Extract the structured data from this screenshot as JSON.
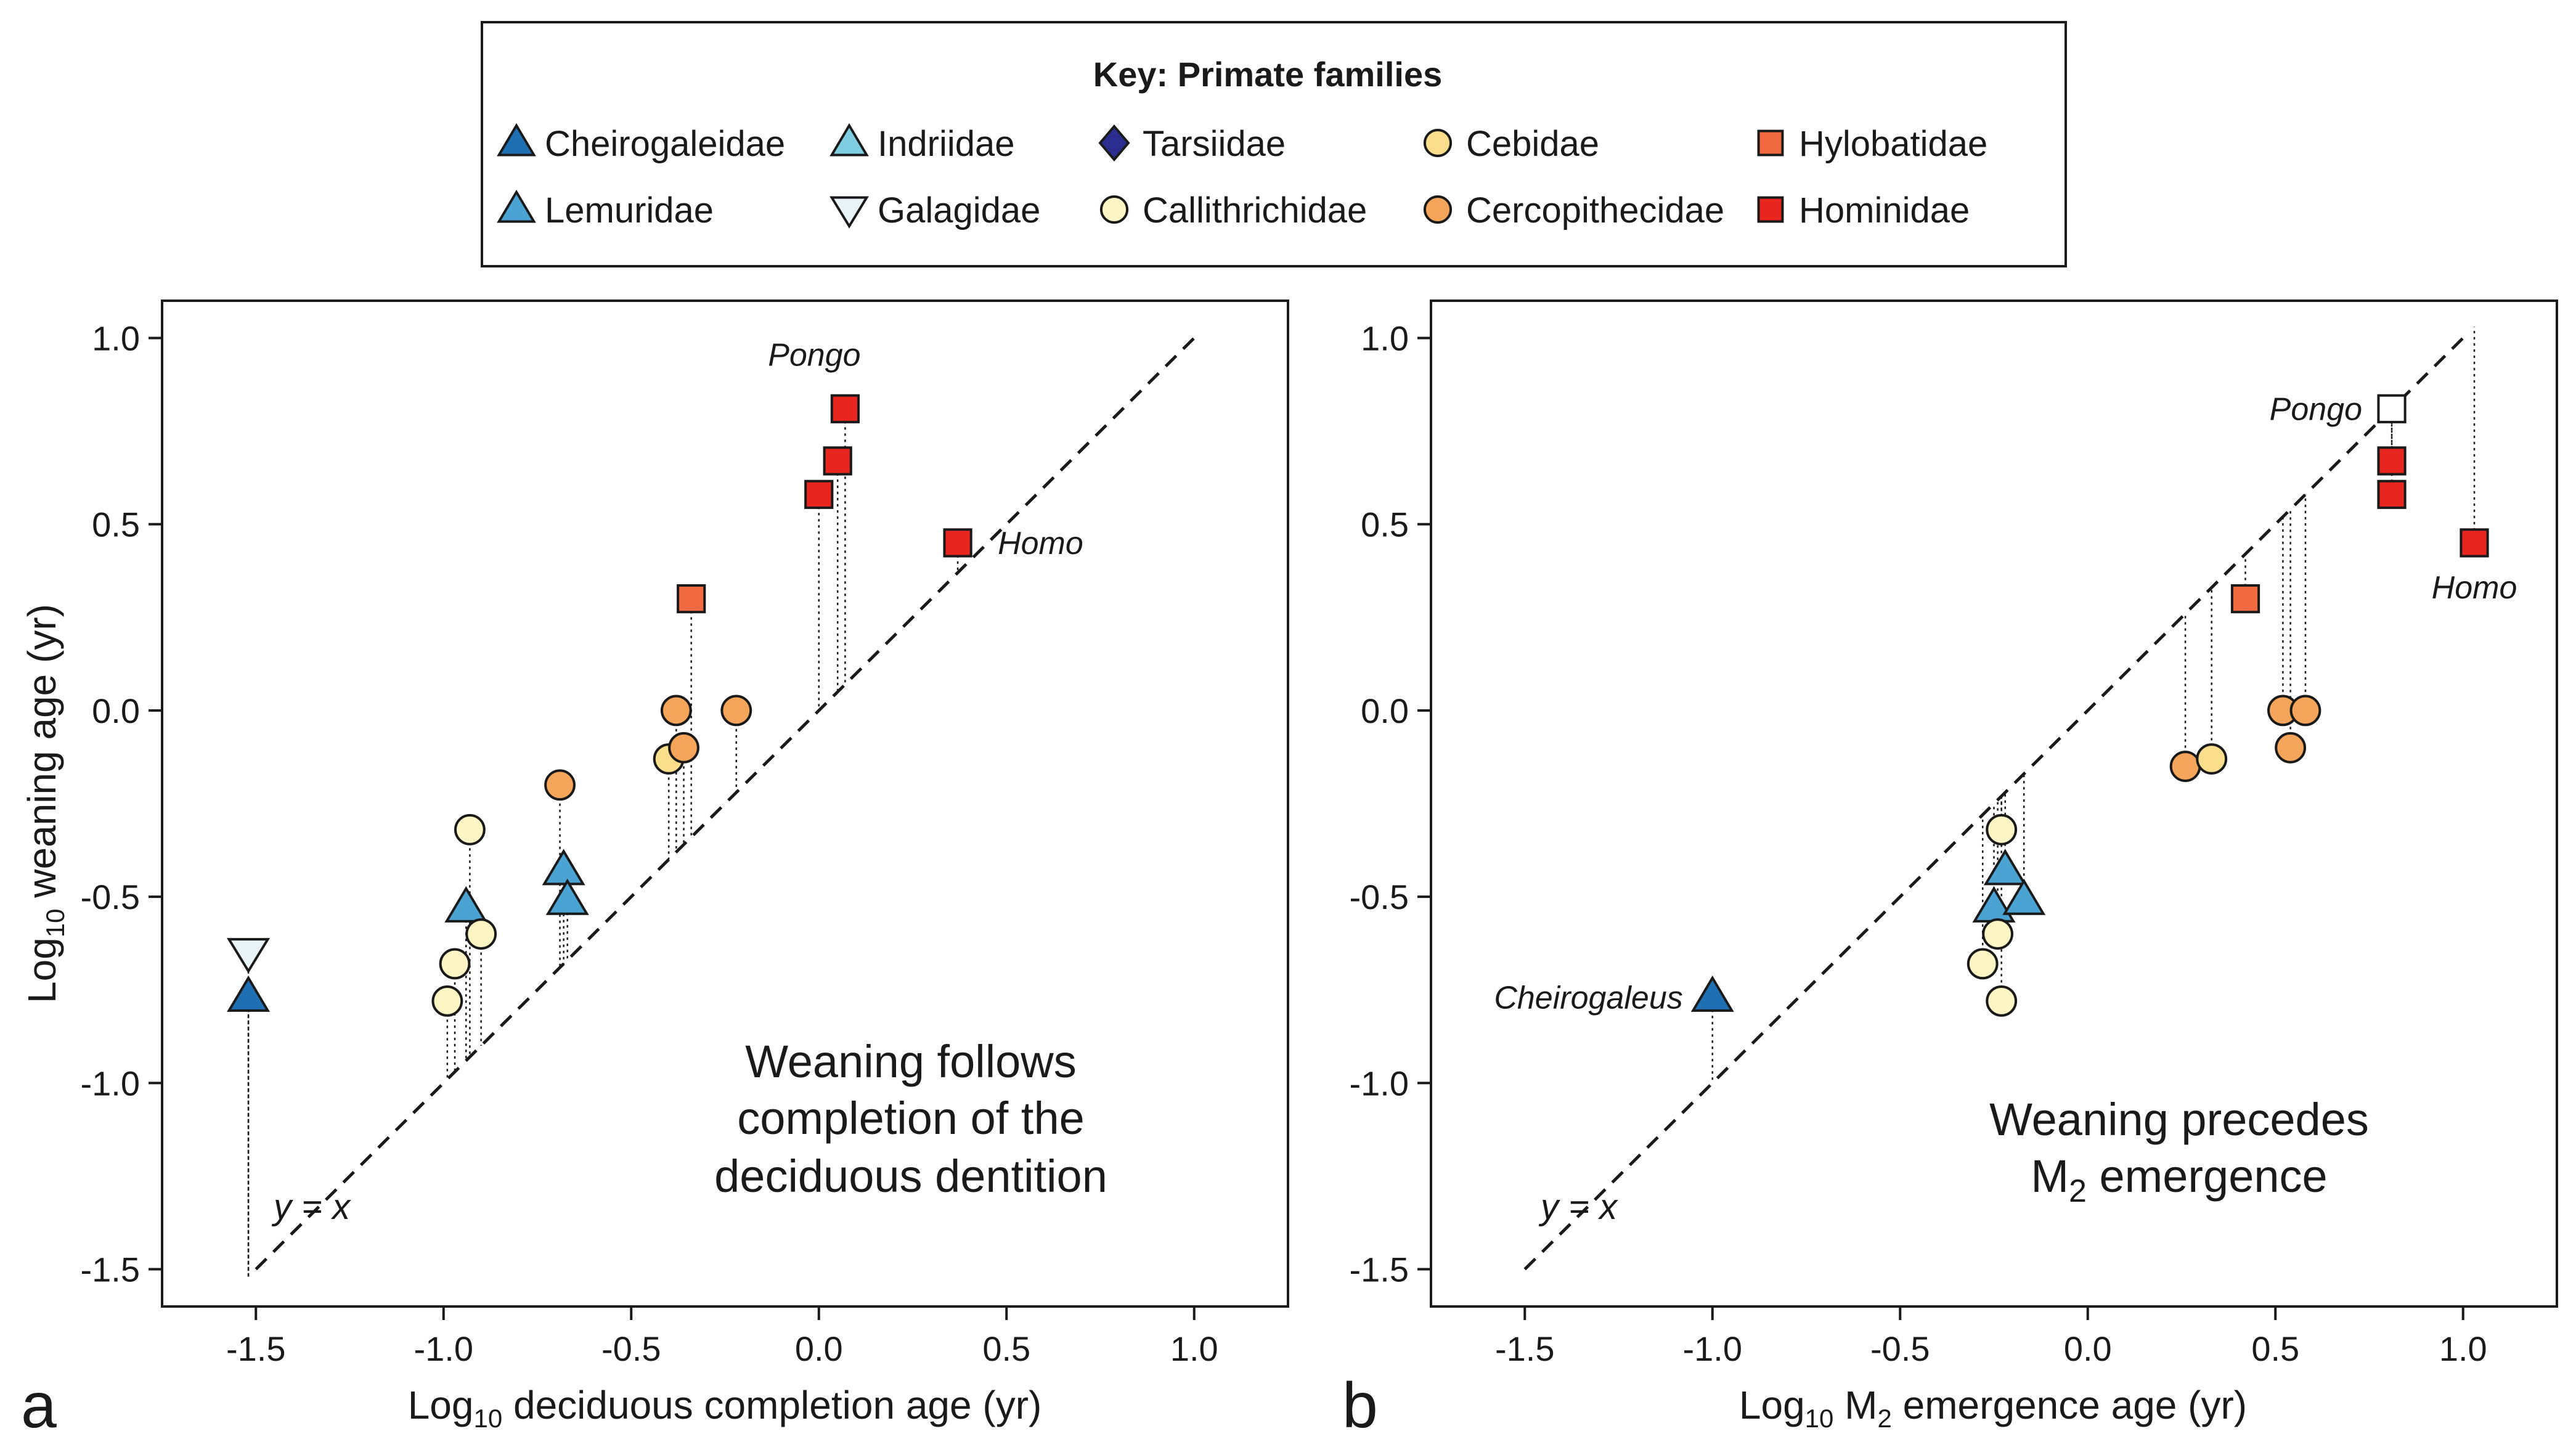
{
  "legend": {
    "title": "Key:  Primate families",
    "families": [
      {
        "name": "Cheirogaleidae",
        "marker": "triangle-up",
        "color": "#1f6fb3"
      },
      {
        "name": "Indriidae",
        "marker": "triangle-up",
        "color": "#7ecde0"
      },
      {
        "name": "Tarsiidae",
        "marker": "diamond",
        "color": "#2c2e8f"
      },
      {
        "name": "Cebidae",
        "marker": "circle",
        "color": "#fbde8c"
      },
      {
        "name": "Hylobatidae",
        "marker": "square",
        "color": "#f26a3f"
      },
      {
        "name": "Lemuridae",
        "marker": "triangle-up",
        "color": "#4aa3d3"
      },
      {
        "name": "Galagidae",
        "marker": "triangle-down",
        "color": "#e9f4f8"
      },
      {
        "name": "Callithrichidae",
        "marker": "circle",
        "color": "#fdf5c4"
      },
      {
        "name": "Cercopithecidae",
        "marker": "circle",
        "color": "#f5a55a"
      },
      {
        "name": "Hominidae",
        "marker": "square",
        "color": "#e8261f"
      }
    ]
  },
  "chart_data": [
    {
      "panel": "a",
      "type": "scatter",
      "xlabel_prefix": "Log",
      "xlabel_sub": "10",
      "xlabel_rest": " deciduous completion age (yr)",
      "ylabel_prefix": "Log",
      "ylabel_sub": "10",
      "ylabel_rest": " weaning age (yr)",
      "xlim": [
        -1.75,
        1.25
      ],
      "ylim": [
        -1.6,
        1.1
      ],
      "xticks": [
        -1.5,
        -1.0,
        -0.5,
        0.0,
        0.5,
        1.0
      ],
      "xtick_labels": [
        "-1.5",
        "-1.0",
        "-0.5",
        "0.0",
        "0.5",
        "1.0"
      ],
      "yticks": [
        -1.5,
        -1.0,
        -0.5,
        0.0,
        0.5,
        1.0
      ],
      "ytick_labels": [
        "-1.5",
        "-1.0",
        "-0.5",
        "0.0",
        "0.5",
        "1.0"
      ],
      "reference_line": {
        "label_prefix": "y",
        "label_rest": " = x",
        "slope": 1,
        "range": [
          -1.5,
          1.0
        ]
      },
      "annotation_lines": [
        "Weaning follows",
        "completion of the",
        "deciduous dentition"
      ],
      "points": [
        {
          "family": "Galagidae",
          "x": -1.52,
          "y": -0.65
        },
        {
          "family": "Cheirogaleidae",
          "x": -1.52,
          "y": -0.77
        },
        {
          "family": "Lemuridae",
          "x": -0.94,
          "y": -0.53
        },
        {
          "family": "Callithrichidae",
          "x": -0.93,
          "y": -0.32
        },
        {
          "family": "Callithrichidae",
          "x": -0.97,
          "y": -0.68
        },
        {
          "family": "Callithrichidae",
          "x": -0.99,
          "y": -0.78
        },
        {
          "family": "Callithrichidae",
          "x": -0.9,
          "y": -0.6
        },
        {
          "family": "Cercopithecidae",
          "x": -0.69,
          "y": -0.2
        },
        {
          "family": "Lemuridae",
          "x": -0.68,
          "y": -0.43
        },
        {
          "family": "Lemuridae",
          "x": -0.67,
          "y": -0.51
        },
        {
          "family": "Cebidae",
          "x": -0.4,
          "y": -0.13
        },
        {
          "family": "Cercopithecidae",
          "x": -0.38,
          "y": 0.0
        },
        {
          "family": "Cercopithecidae",
          "x": -0.36,
          "y": -0.1
        },
        {
          "family": "Hylobatidae",
          "x": -0.34,
          "y": 0.3
        },
        {
          "family": "Cercopithecidae",
          "x": -0.22,
          "y": 0.0
        },
        {
          "family": "Hominidae",
          "x": 0.0,
          "y": 0.58
        },
        {
          "family": "Hominidae",
          "x": 0.05,
          "y": 0.67
        },
        {
          "family": "Hominidae",
          "x": 0.07,
          "y": 0.81
        },
        {
          "family": "Hominidae",
          "x": 0.37,
          "y": 0.45
        }
      ],
      "point_labels": [
        {
          "text": "Pongo",
          "x": 0.07,
          "y": 0.81
        },
        {
          "text": "Homo",
          "x": 0.37,
          "y": 0.45
        }
      ]
    },
    {
      "panel": "b",
      "type": "scatter",
      "xlabel_prefix": "Log",
      "xlabel_sub": "10",
      "xlabel_mid": " M",
      "xlabel_sub2": "2",
      "xlabel_rest": " emergence age (yr)",
      "xlim": [
        -1.75,
        1.25
      ],
      "ylim": [
        -1.6,
        1.1
      ],
      "xticks": [
        -1.5,
        -1.0,
        -0.5,
        0.0,
        0.5,
        1.0
      ],
      "xtick_labels": [
        "-1.5",
        "-1.0",
        "-0.5",
        "0.0",
        "0.5",
        "1.0"
      ],
      "yticks": [
        -1.5,
        -1.0,
        -0.5,
        0.0,
        0.5,
        1.0
      ],
      "ytick_labels": [
        "-1.5",
        "-1.0",
        "-0.5",
        "0.0",
        "0.5",
        "1.0"
      ],
      "reference_line": {
        "label_prefix": "y",
        "label_rest": " = x",
        "slope": 1,
        "range": [
          -1.5,
          1.0
        ]
      },
      "annotation_line1": "Weaning precedes",
      "annotation_line2_prefix": "M",
      "annotation_line2_sub": "2",
      "annotation_line2_rest": " emergence",
      "points": [
        {
          "family": "Cheirogaleidae",
          "x": -1.0,
          "y": -0.77
        },
        {
          "family": "Callithrichidae",
          "x": -0.23,
          "y": -0.32
        },
        {
          "family": "Lemuridae",
          "x": -0.22,
          "y": -0.43
        },
        {
          "family": "Lemuridae",
          "x": -0.25,
          "y": -0.53
        },
        {
          "family": "Lemuridae",
          "x": -0.17,
          "y": -0.51
        },
        {
          "family": "Callithrichidae",
          "x": -0.24,
          "y": -0.6
        },
        {
          "family": "Callithrichidae",
          "x": -0.28,
          "y": -0.68
        },
        {
          "family": "Callithrichidae",
          "x": -0.23,
          "y": -0.78
        },
        {
          "family": "Cercopithecidae",
          "x": 0.26,
          "y": -0.15
        },
        {
          "family": "Cebidae",
          "x": 0.33,
          "y": -0.13
        },
        {
          "family": "Hylobatidae",
          "x": 0.42,
          "y": 0.3
        },
        {
          "family": "Cercopithecidae",
          "x": 0.52,
          "y": 0.0
        },
        {
          "family": "Cercopithecidae",
          "x": 0.58,
          "y": 0.0
        },
        {
          "family": "Cercopithecidae",
          "x": 0.54,
          "y": -0.1
        },
        {
          "family": "Pongo-open",
          "x": 0.81,
          "y": 0.81
        },
        {
          "family": "Hominidae",
          "x": 0.81,
          "y": 0.67
        },
        {
          "family": "Hominidae",
          "x": 0.81,
          "y": 0.58
        },
        {
          "family": "Hominidae",
          "x": 1.03,
          "y": 0.45
        }
      ],
      "point_labels": [
        {
          "text": "Cheirogaleus",
          "x": -1.0,
          "y": -0.77
        },
        {
          "text": "Pongo",
          "x": 0.81,
          "y": 0.81
        },
        {
          "text": "Homo",
          "x": 1.03,
          "y": 0.45
        }
      ]
    }
  ]
}
